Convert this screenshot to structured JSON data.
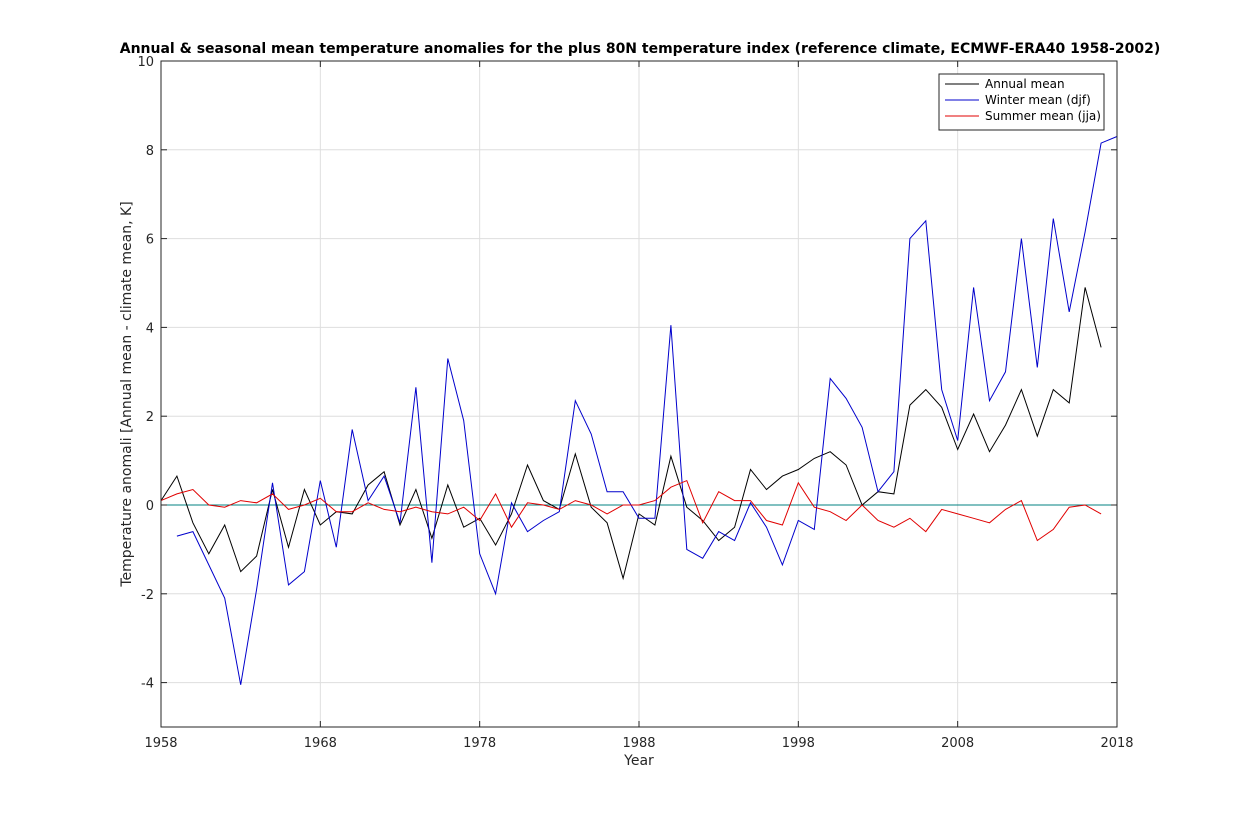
{
  "chart_data": {
    "type": "line",
    "title": "Annual & seasonal mean temperature anomalies for the plus 80N temperature index (reference climate, ECMWF-ERA40 1958-2002)",
    "xlabel": "Year",
    "ylabel": "Temperature anomali [Annual mean - climate mean, K]",
    "xlim": [
      1958,
      2018
    ],
    "ylim": [
      -5,
      10
    ],
    "xticks": [
      1958,
      1968,
      1978,
      1988,
      1998,
      2008,
      2018
    ],
    "yticks": [
      -4,
      -2,
      0,
      2,
      4,
      6,
      8,
      10
    ],
    "grid": true,
    "legend_position": "top-right",
    "reference_line": {
      "y": 0,
      "color": "#008080"
    },
    "series": [
      {
        "name": "Annual mean",
        "color": "#000000",
        "x": [
          1958,
          1959,
          1960,
          1961,
          1962,
          1963,
          1964,
          1965,
          1966,
          1967,
          1968,
          1969,
          1970,
          1971,
          1972,
          1973,
          1974,
          1975,
          1976,
          1977,
          1978,
          1979,
          1980,
          1981,
          1982,
          1983,
          1984,
          1985,
          1986,
          1987,
          1988,
          1989,
          1990,
          1991,
          1992,
          1993,
          1994,
          1995,
          1996,
          1997,
          1998,
          1999,
          2000,
          2001,
          2002,
          2003,
          2004,
          2005,
          2006,
          2007,
          2008,
          2009,
          2010,
          2011,
          2012,
          2013,
          2014,
          2015,
          2016,
          2017
        ],
        "values": [
          0.1,
          0.65,
          -0.4,
          -1.1,
          -0.45,
          -1.5,
          -1.15,
          0.35,
          -0.95,
          0.35,
          -0.45,
          -0.15,
          -0.2,
          0.45,
          0.75,
          -0.45,
          0.35,
          -0.75,
          0.45,
          -0.5,
          -0.3,
          -0.9,
          -0.2,
          0.9,
          0.1,
          -0.1,
          1.15,
          -0.05,
          -0.4,
          -1.65,
          -0.2,
          -0.45,
          1.1,
          -0.05,
          -0.35,
          -0.8,
          -0.5,
          0.8,
          0.35,
          0.65,
          0.8,
          1.05,
          1.2,
          0.9,
          0.0,
          0.3,
          0.25,
          2.25,
          2.6,
          2.2,
          1.25,
          2.05,
          1.2,
          1.8,
          2.6,
          1.55,
          2.6,
          2.3,
          4.9,
          3.55
        ]
      },
      {
        "name": "Winter mean (djf)",
        "color": "#0000cc",
        "x": [
          1959,
          1960,
          1961,
          1962,
          1963,
          1964,
          1965,
          1966,
          1967,
          1968,
          1969,
          1970,
          1971,
          1972,
          1973,
          1974,
          1975,
          1976,
          1977,
          1978,
          1979,
          1980,
          1981,
          1982,
          1983,
          1984,
          1985,
          1986,
          1987,
          1988,
          1989,
          1990,
          1991,
          1992,
          1993,
          1994,
          1995,
          1996,
          1997,
          1998,
          1999,
          2000,
          2001,
          2002,
          2003,
          2004,
          2005,
          2006,
          2007,
          2008,
          2009,
          2010,
          2011,
          2012,
          2013,
          2014,
          2015,
          2016,
          2017,
          2018
        ],
        "values": [
          -0.7,
          -0.6,
          -1.35,
          -2.1,
          -4.05,
          -1.9,
          0.5,
          -1.8,
          -1.5,
          0.55,
          -0.95,
          1.7,
          0.1,
          0.65,
          -0.4,
          2.65,
          -1.3,
          3.3,
          1.9,
          -1.1,
          -2.0,
          0.05,
          -0.6,
          -0.35,
          -0.15,
          2.35,
          1.6,
          0.3,
          0.3,
          -0.3,
          -0.3,
          4.05,
          -1.0,
          -1.2,
          -0.6,
          -0.8,
          0.05,
          -0.5,
          -1.35,
          -0.35,
          -0.55,
          2.85,
          2.4,
          1.75,
          0.3,
          0.75,
          6.0,
          6.4,
          2.6,
          1.45,
          4.9,
          2.35,
          3.0,
          6.0,
          3.1,
          6.45,
          4.35,
          6.15,
          8.15,
          8.3
        ]
      },
      {
        "name": "Summer mean (jja)",
        "color": "#e00000",
        "x": [
          1958,
          1959,
          1960,
          1961,
          1962,
          1963,
          1964,
          1965,
          1966,
          1967,
          1968,
          1969,
          1970,
          1971,
          1972,
          1973,
          1974,
          1975,
          1976,
          1977,
          1978,
          1979,
          1980,
          1981,
          1982,
          1983,
          1984,
          1985,
          1986,
          1987,
          1988,
          1989,
          1990,
          1991,
          1992,
          1993,
          1994,
          1995,
          1996,
          1997,
          1998,
          1999,
          2000,
          2001,
          2002,
          2003,
          2004,
          2005,
          2006,
          2007,
          2008,
          2009,
          2010,
          2011,
          2012,
          2013,
          2014,
          2015,
          2016,
          2017
        ],
        "values": [
          0.1,
          0.25,
          0.35,
          0.0,
          -0.05,
          0.1,
          0.05,
          0.25,
          -0.1,
          0.0,
          0.15,
          -0.15,
          -0.15,
          0.05,
          -0.1,
          -0.15,
          -0.05,
          -0.15,
          -0.2,
          -0.05,
          -0.35,
          0.25,
          -0.5,
          0.05,
          0.0,
          -0.1,
          0.1,
          0.0,
          -0.2,
          0.0,
          0.0,
          0.1,
          0.4,
          0.55,
          -0.4,
          0.3,
          0.1,
          0.1,
          -0.35,
          -0.45,
          0.5,
          -0.05,
          -0.15,
          -0.35,
          0.0,
          -0.35,
          -0.5,
          -0.3,
          -0.6,
          -0.1,
          -0.2,
          -0.3,
          -0.4,
          -0.1,
          0.1,
          -0.8,
          -0.55,
          -0.05,
          0.0,
          -0.2
        ]
      }
    ]
  }
}
